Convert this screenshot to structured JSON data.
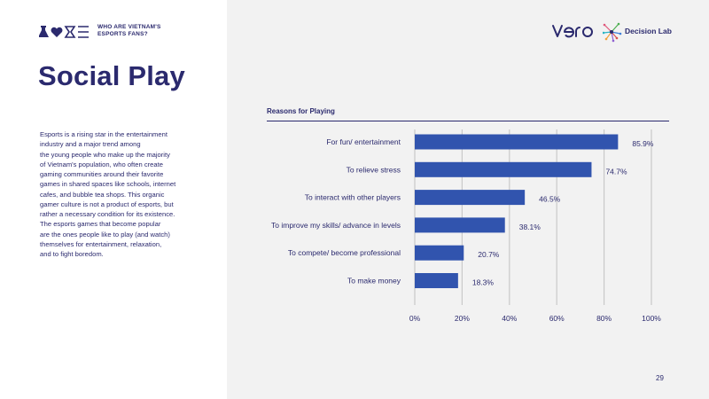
{
  "header": {
    "caption_line1": "WHO ARE VIETNAM'S",
    "caption_line2": "ESPORTS FANS?",
    "logos": [
      "vero-logo",
      "decision-lab-logo"
    ],
    "decision_lab_text": "Decision Lab"
  },
  "title": "Social Play",
  "body_lines": [
    "Esports is a rising star in the entertainment",
    "industry  and  a  major  trend  among",
    "the young people who make up the majority",
    "of Vietnam's population,  who  often create",
    "gaming  communities around their favorite",
    "games in shared spaces like schools, internet",
    "cafes, and bubble tea shops. This organic",
    "gamer culture is not a product of esports, but",
    "rather a necessary condition for its existence.",
    "The esports games that become popular",
    "are the ones people like to play (and watch)",
    "themselves for entertainment, relaxation,",
    "and to fight boredom."
  ],
  "page_number": "29",
  "colors": {
    "primary": "#2b2a6e",
    "bar": "#3154ae",
    "grid": "#c9c9c9",
    "panel": "#f2f2f2"
  },
  "chart_data": {
    "type": "bar",
    "orientation": "horizontal",
    "title": "Reasons for Playing",
    "categories": [
      "For fun/ entertainment",
      "To relieve stress",
      "To interact with other players",
      "To improve my skills/ advance in levels",
      "To compete/ become professional",
      "To make money"
    ],
    "values": [
      85.9,
      74.7,
      46.5,
      38.1,
      20.7,
      18.3
    ],
    "value_labels": [
      "85.9%",
      "74.7%",
      "46.5%",
      "38.1%",
      "20.7%",
      "18.3%"
    ],
    "xlim": [
      0,
      100
    ],
    "ticks": [
      0,
      20,
      40,
      60,
      80,
      100
    ],
    "tick_labels": [
      "0%",
      "20%",
      "40%",
      "60%",
      "80%",
      "100%"
    ],
    "grid": true
  }
}
